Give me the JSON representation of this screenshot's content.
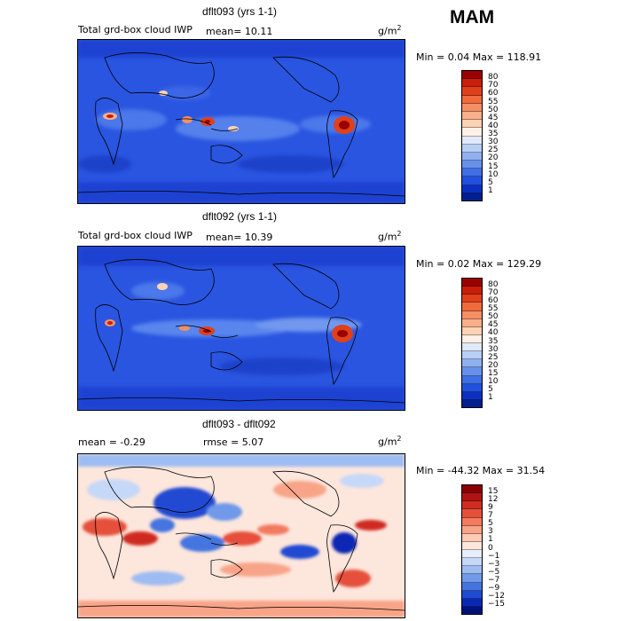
{
  "season": "MAM",
  "panels": [
    {
      "title": "dflt093 (yrs 1-1)",
      "left_label": "Total grd-box cloud IWP",
      "stat1": "mean=  10.11",
      "stat2": "",
      "units": "g/m",
      "units_sup": "2",
      "minmax": "Min =   0.04 Max = 118.91",
      "colorbar": {
        "labels": [
          "80",
          "70",
          "60",
          "55",
          "50",
          "45",
          "40",
          "35",
          "30",
          "25",
          "20",
          "15",
          "10",
          "5",
          "1"
        ],
        "colors": [
          "#9b0000",
          "#c81e0a",
          "#e0401a",
          "#ef6a3c",
          "#f48f64",
          "#f7b089",
          "#fbd3b4",
          "#fdf0e6",
          "#dfe9fb",
          "#b7cff5",
          "#8fb1ef",
          "#6690ea",
          "#3f6ee6",
          "#2150dc",
          "#0c2fbf",
          "#001f8f"
        ]
      }
    },
    {
      "title": "dflt092 (yrs 1-1)",
      "left_label": "Total grd-box cloud IWP",
      "stat1": "mean=  10.39",
      "stat2": "",
      "units": "g/m",
      "units_sup": "2",
      "minmax": "Min =   0.02 Max = 129.29",
      "colorbar": {
        "labels": [
          "80",
          "70",
          "60",
          "55",
          "50",
          "45",
          "40",
          "35",
          "30",
          "25",
          "20",
          "15",
          "10",
          "5",
          "1"
        ],
        "colors": [
          "#9b0000",
          "#c81e0a",
          "#e0401a",
          "#ef6a3c",
          "#f48f64",
          "#f7b089",
          "#fbd3b4",
          "#fdf0e6",
          "#dfe9fb",
          "#b7cff5",
          "#8fb1ef",
          "#6690ea",
          "#3f6ee6",
          "#2150dc",
          "#0c2fbf",
          "#001f8f"
        ]
      }
    },
    {
      "title": "dflt093 - dflt092",
      "left_label": "mean =  -0.29",
      "stat1": "",
      "stat2": "rmse =   5.07",
      "units": "g/m",
      "units_sup": "2",
      "minmax": "Min = -44.32 Max =  31.54",
      "colorbar": {
        "labels": [
          "15",
          "12",
          "9",
          "7",
          "5",
          "3",
          "1",
          "0",
          "−1",
          "−3",
          "−5",
          "−7",
          "−9",
          "−12",
          "−15"
        ],
        "colors": [
          "#8b0000",
          "#b01414",
          "#cf2c22",
          "#e5503a",
          "#f27a5e",
          "#f8a488",
          "#fccab5",
          "#fde6dc",
          "#e6eefc",
          "#c6d8f8",
          "#9dbcf1",
          "#7099e9",
          "#4574df",
          "#2049d1",
          "#0b28b4",
          "#00127a"
        ]
      }
    }
  ]
}
